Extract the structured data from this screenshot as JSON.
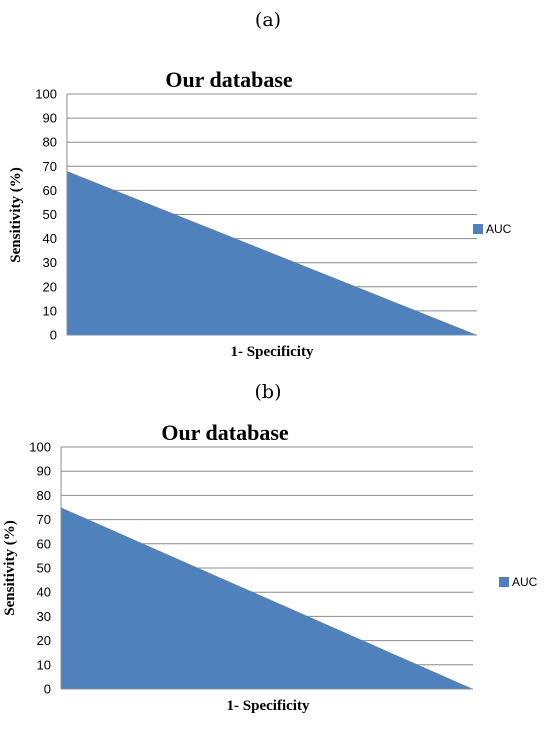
{
  "panels": [
    {
      "label": "(a)",
      "chart_data": {
        "type": "area",
        "title": "Our database",
        "xlabel": "1- Specificity",
        "ylabel": "Sensitivity (%)",
        "ylim": [
          0,
          100
        ],
        "yticks": [
          0,
          10,
          20,
          30,
          40,
          50,
          60,
          70,
          80,
          90,
          100
        ],
        "x": [
          0,
          1
        ],
        "series": [
          {
            "name": "AUC",
            "values": [
              68,
              0
            ],
            "color": "#4f81bd"
          }
        ],
        "grid": true,
        "legend": "right"
      }
    },
    {
      "label": "(b)",
      "chart_data": {
        "type": "area",
        "title": "Our database",
        "xlabel": "1- Specificity",
        "ylabel": "Sensitivity (%)",
        "ylim": [
          0,
          100
        ],
        "yticks": [
          0,
          10,
          20,
          30,
          40,
          50,
          60,
          70,
          80,
          90,
          100
        ],
        "x": [
          0,
          1
        ],
        "series": [
          {
            "name": "AUC",
            "values": [
              75,
              0
            ],
            "color": "#4f81bd"
          }
        ],
        "grid": true,
        "legend": "right"
      }
    }
  ]
}
